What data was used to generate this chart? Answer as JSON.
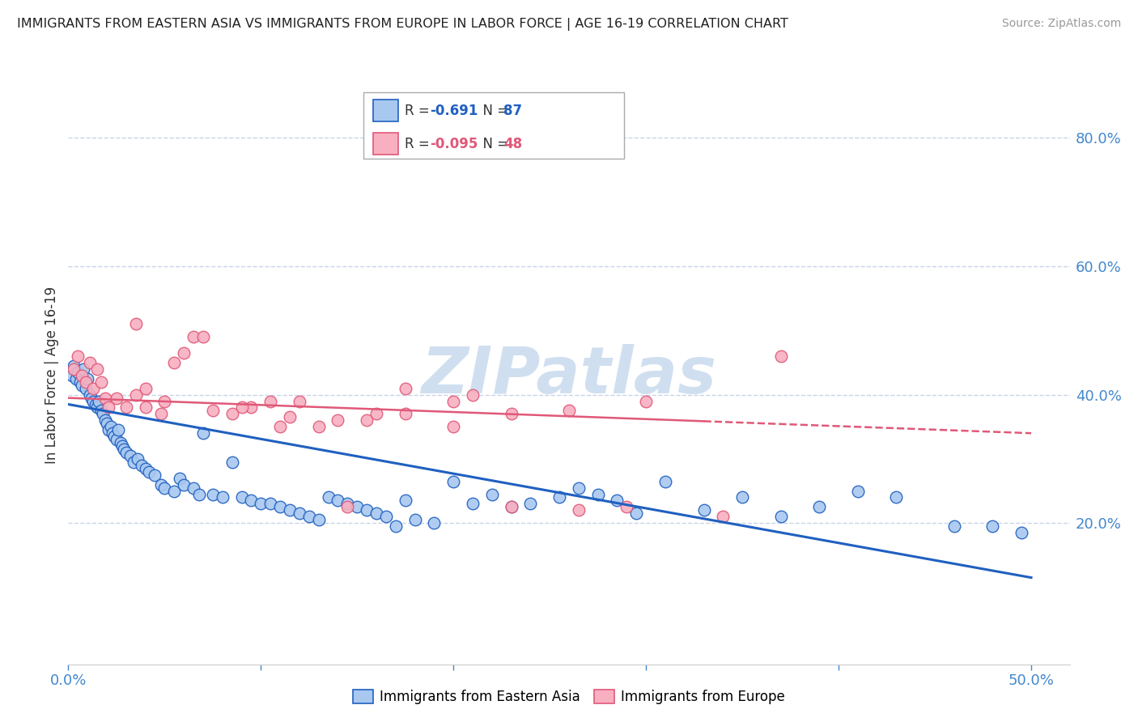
{
  "title": "IMMIGRANTS FROM EASTERN ASIA VS IMMIGRANTS FROM EUROPE IN LABOR FORCE | AGE 16-19 CORRELATION CHART",
  "source": "Source: ZipAtlas.com",
  "ylabel": "In Labor Force | Age 16-19",
  "right_yticks": [
    "80.0%",
    "60.0%",
    "40.0%",
    "20.0%"
  ],
  "right_ytick_vals": [
    0.8,
    0.6,
    0.4,
    0.2
  ],
  "xlim": [
    0.0,
    0.52
  ],
  "ylim": [
    -0.02,
    0.88
  ],
  "series1_color": "#a8c8f0",
  "series2_color": "#f8b0c0",
  "trendline1_color": "#2060c0",
  "trendline2_color": "#e05878",
  "watermark_color": "#d0dff0",
  "legend_label1": "Immigrants from Eastern Asia",
  "legend_label2": "Immigrants from Europe",
  "background_color": "#ffffff",
  "grid_color": "#c8d4e8",
  "title_color": "#222222",
  "axis_label_color": "#4488cc",
  "trendline1_x0": 0.0,
  "trendline1_x1": 0.5,
  "trendline1_y0": 0.385,
  "trendline1_y1": 0.115,
  "trendline2_x0": 0.0,
  "trendline2_x1": 0.5,
  "trendline2_y0": 0.395,
  "trendline2_y1": 0.34,
  "series1_x": [
    0.002,
    0.003,
    0.004,
    0.005,
    0.006,
    0.007,
    0.008,
    0.009,
    0.01,
    0.011,
    0.012,
    0.013,
    0.014,
    0.015,
    0.016,
    0.017,
    0.018,
    0.019,
    0.02,
    0.021,
    0.022,
    0.023,
    0.024,
    0.025,
    0.026,
    0.027,
    0.028,
    0.029,
    0.03,
    0.032,
    0.034,
    0.036,
    0.038,
    0.04,
    0.042,
    0.045,
    0.048,
    0.05,
    0.055,
    0.058,
    0.06,
    0.065,
    0.068,
    0.07,
    0.075,
    0.08,
    0.085,
    0.09,
    0.095,
    0.1,
    0.105,
    0.11,
    0.115,
    0.12,
    0.125,
    0.13,
    0.135,
    0.14,
    0.145,
    0.15,
    0.155,
    0.16,
    0.165,
    0.17,
    0.175,
    0.18,
    0.19,
    0.2,
    0.21,
    0.22,
    0.23,
    0.24,
    0.255,
    0.265,
    0.275,
    0.285,
    0.295,
    0.31,
    0.33,
    0.35,
    0.37,
    0.39,
    0.41,
    0.43,
    0.46,
    0.48,
    0.495
  ],
  "series1_y": [
    0.43,
    0.445,
    0.425,
    0.435,
    0.42,
    0.415,
    0.44,
    0.41,
    0.425,
    0.4,
    0.395,
    0.39,
    0.385,
    0.38,
    0.39,
    0.375,
    0.37,
    0.36,
    0.355,
    0.345,
    0.35,
    0.34,
    0.335,
    0.33,
    0.345,
    0.325,
    0.32,
    0.315,
    0.31,
    0.305,
    0.295,
    0.3,
    0.29,
    0.285,
    0.28,
    0.275,
    0.26,
    0.255,
    0.25,
    0.27,
    0.26,
    0.255,
    0.245,
    0.34,
    0.245,
    0.24,
    0.295,
    0.24,
    0.235,
    0.23,
    0.23,
    0.225,
    0.22,
    0.215,
    0.21,
    0.205,
    0.24,
    0.235,
    0.23,
    0.225,
    0.22,
    0.215,
    0.21,
    0.195,
    0.235,
    0.205,
    0.2,
    0.265,
    0.23,
    0.245,
    0.225,
    0.23,
    0.24,
    0.255,
    0.245,
    0.235,
    0.215,
    0.265,
    0.22,
    0.24,
    0.21,
    0.225,
    0.25,
    0.24,
    0.195,
    0.195,
    0.185
  ],
  "series2_x": [
    0.003,
    0.005,
    0.007,
    0.009,
    0.011,
    0.013,
    0.015,
    0.017,
    0.019,
    0.021,
    0.025,
    0.03,
    0.035,
    0.04,
    0.048,
    0.055,
    0.065,
    0.075,
    0.085,
    0.095,
    0.105,
    0.115,
    0.13,
    0.145,
    0.16,
    0.175,
    0.2,
    0.23,
    0.26,
    0.29,
    0.035,
    0.04,
    0.05,
    0.06,
    0.07,
    0.09,
    0.11,
    0.12,
    0.14,
    0.155,
    0.175,
    0.2,
    0.21,
    0.23,
    0.265,
    0.3,
    0.34,
    0.37
  ],
  "series2_y": [
    0.44,
    0.46,
    0.43,
    0.42,
    0.45,
    0.41,
    0.44,
    0.42,
    0.395,
    0.38,
    0.395,
    0.38,
    0.4,
    0.38,
    0.37,
    0.45,
    0.49,
    0.375,
    0.37,
    0.38,
    0.39,
    0.365,
    0.35,
    0.225,
    0.37,
    0.37,
    0.39,
    0.37,
    0.375,
    0.225,
    0.51,
    0.41,
    0.39,
    0.465,
    0.49,
    0.38,
    0.35,
    0.39,
    0.36,
    0.36,
    0.41,
    0.35,
    0.4,
    0.225,
    0.22,
    0.39,
    0.21,
    0.46
  ]
}
